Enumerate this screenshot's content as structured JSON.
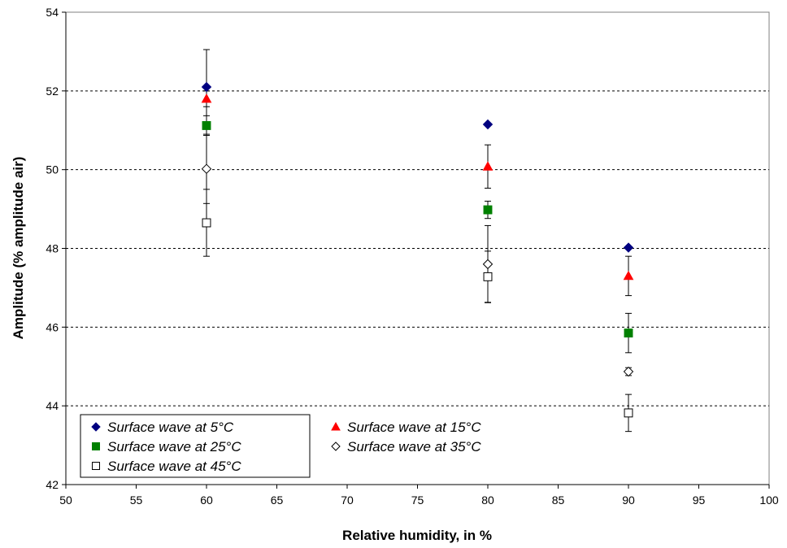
{
  "chart_data": {
    "type": "scatter",
    "title": "",
    "xlabel": "Relative humidity, in %",
    "ylabel": "Amplitude (% amplitude air)",
    "xlim": [
      50,
      100
    ],
    "ylim": [
      42,
      54
    ],
    "xticks": [
      50,
      55,
      60,
      65,
      70,
      75,
      80,
      85,
      90,
      95,
      100
    ],
    "yticks": [
      42,
      44,
      46,
      48,
      50,
      52,
      54
    ],
    "grid": "horizontal-dashed",
    "legend_position": "bottom-left",
    "series": [
      {
        "name": "Surface wave at 5°C",
        "marker": "diamond",
        "color": "#000080",
        "fill": true,
        "points": [
          {
            "x": 60,
            "y": 52.1,
            "err": 0.95
          },
          {
            "x": 80,
            "y": 51.15,
            "err": 0
          },
          {
            "x": 90,
            "y": 48.02,
            "err": 0
          }
        ]
      },
      {
        "name": "Surface wave at 15°C",
        "marker": "triangle",
        "color": "#ff0000",
        "fill": true,
        "points": [
          {
            "x": 60,
            "y": 51.8,
            "err": 0.2
          },
          {
            "x": 80,
            "y": 50.08,
            "err": 0.55
          },
          {
            "x": 90,
            "y": 47.3,
            "err": 0.5
          }
        ]
      },
      {
        "name": "Surface wave at 25°C",
        "marker": "square",
        "color": "#008000",
        "fill": true,
        "points": [
          {
            "x": 60,
            "y": 51.12,
            "err": 0.25
          },
          {
            "x": 80,
            "y": 48.98,
            "err": 0.22
          },
          {
            "x": 90,
            "y": 45.85,
            "err": 0.5
          }
        ]
      },
      {
        "name": "Surface wave at 35°C",
        "marker": "diamond",
        "color": "#000000",
        "fill": false,
        "points": [
          {
            "x": 60,
            "y": 50.02,
            "err": 0.88
          },
          {
            "x": 80,
            "y": 47.6,
            "err": 0.98
          },
          {
            "x": 90,
            "y": 44.87,
            "err": 0.1
          }
        ]
      },
      {
        "name": "Surface wave at 45°C",
        "marker": "square",
        "color": "#000000",
        "fill": false,
        "points": [
          {
            "x": 60,
            "y": 48.65,
            "err": 0.85
          },
          {
            "x": 80,
            "y": 47.28,
            "err": 0.65
          },
          {
            "x": 90,
            "y": 43.82,
            "err": 0.47
          }
        ]
      }
    ]
  }
}
